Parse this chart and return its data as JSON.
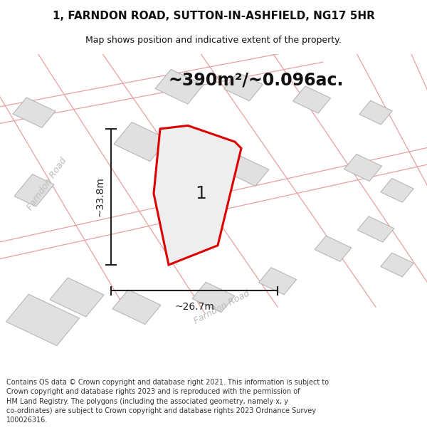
{
  "title_line1": "1, FARNDON ROAD, SUTTON-IN-ASHFIELD, NG17 5HR",
  "title_line2": "Map shows position and indicative extent of the property.",
  "area_text": "~390m²/~0.096ac.",
  "property_number": "1",
  "dim_height": "~33.8m",
  "dim_width": "~26.7m",
  "road_label_upper": "Farndon Road",
  "road_label_lower": "Farndon Road",
  "footer_text": "Contains OS data © Crown copyright and database right 2021. This information is subject to Crown copyright and database rights 2023 and is reproduced with the permission of HM Land Registry. The polygons (including the associated geometry, namely x, y co-ordinates) are subject to Crown copyright and database rights 2023 Ordnance Survey 100026316.",
  "bg_color": "#ffffff",
  "map_bg": "#f2f2f2",
  "road_line_color": "#e8a0a0",
  "road_line_lw": 0.9,
  "plot_fill": "#e8e8e8",
  "plot_edge": "#dd0000",
  "plot_lw": 2.2,
  "building_fill": "#e0e0e0",
  "building_edge": "#b0b0b0",
  "building_lw": 0.7,
  "dim_color": "#222222",
  "road_label_color": "#bbbbbb",
  "title_fontsize": 11,
  "subtitle_fontsize": 9,
  "area_fontsize": 17,
  "number_fontsize": 18,
  "dim_fontsize": 10,
  "road_label_fontsize": 9,
  "footer_fontsize": 7.0,
  "footer_color": "#333333"
}
